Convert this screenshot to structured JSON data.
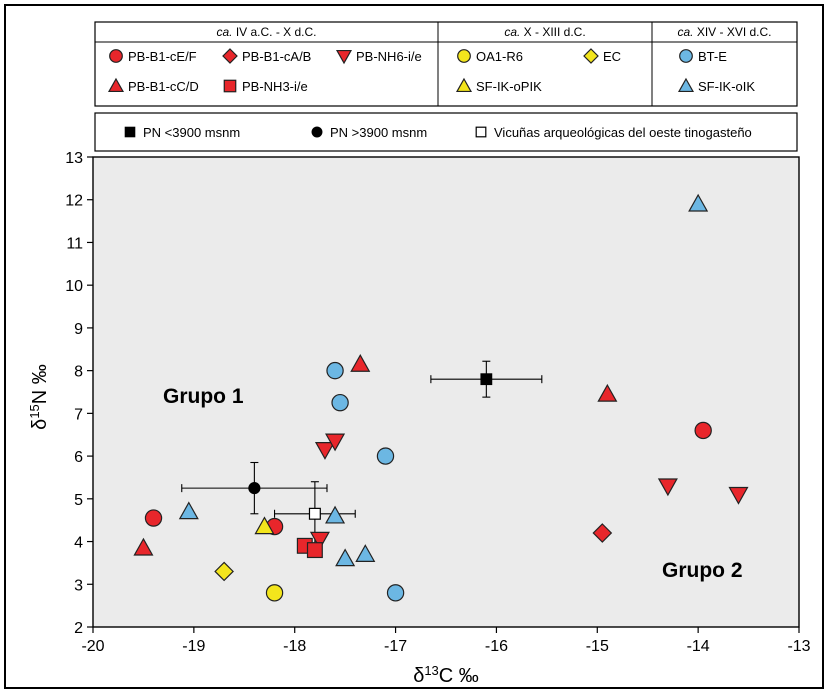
{
  "chart_data": {
    "type": "scatter",
    "xlabel": "δ13C ‰",
    "ylabel": "δ15N ‰",
    "xlim": [
      -20,
      -13
    ],
    "ylim": [
      2,
      13
    ],
    "x_ticks": [
      "-20",
      "-19",
      "-18",
      "-17",
      "-16",
      "-15",
      "-14",
      "-13"
    ],
    "y_ticks": [
      "2",
      "3",
      "4",
      "5",
      "6",
      "7",
      "8",
      "9",
      "10",
      "11",
      "12",
      "13"
    ],
    "grid": false,
    "legend_position": "top",
    "annotations": [
      "Grupo 1",
      "Grupo 2"
    ],
    "periods": [
      {
        "label_italic": "ca.",
        "label": " IV a.C. - X d.C.",
        "color": "#e8262b"
      },
      {
        "label_italic": "ca.",
        "label": " X - XIII d.C.",
        "color": "#f3e51c"
      },
      {
        "label_italic": "ca.",
        "label": " XIV - XVI d.C.",
        "color": "#6cb7e3"
      }
    ],
    "reference_legend": [
      {
        "name": "PN <3900 msnm",
        "marker": "square-filled"
      },
      {
        "name": "PN >3900 msnm",
        "marker": "circle-filled"
      },
      {
        "name": "Vicuñas arqueológicas del oeste tinogasteño",
        "marker": "square-open"
      }
    ],
    "series": [
      {
        "name": "PB-B1-cE/F",
        "marker": "circle",
        "color": "#e8262b",
        "points": [
          [
            -19.4,
            4.55
          ],
          [
            -18.2,
            4.35
          ],
          [
            -13.95,
            6.6
          ]
        ]
      },
      {
        "name": "PB-B1-cA/B",
        "marker": "diamond",
        "color": "#e8262b",
        "points": [
          [
            -14.95,
            4.2
          ]
        ]
      },
      {
        "name": "PB-NH6-i/e",
        "marker": "triangle-down",
        "color": "#e8262b",
        "points": [
          [
            -17.7,
            6.15
          ],
          [
            -17.6,
            6.35
          ],
          [
            -17.75,
            4.05
          ],
          [
            -14.3,
            5.3
          ],
          [
            -13.6,
            5.1
          ]
        ]
      },
      {
        "name": "PB-B1-cC/D",
        "marker": "triangle-up",
        "color": "#e8262b",
        "points": [
          [
            -19.5,
            3.85
          ],
          [
            -17.35,
            8.15
          ],
          [
            -14.9,
            7.45
          ]
        ]
      },
      {
        "name": "PB-NH3-i/e",
        "marker": "square",
        "color": "#e8262b",
        "points": [
          [
            -17.9,
            3.9
          ],
          [
            -17.8,
            3.8
          ]
        ]
      },
      {
        "name": "OA1-R6",
        "marker": "circle",
        "color": "#f3e51c",
        "points": [
          [
            -18.2,
            2.8
          ]
        ]
      },
      {
        "name": "EC",
        "marker": "diamond",
        "color": "#f3e51c",
        "points": [
          [
            -18.7,
            3.3
          ]
        ]
      },
      {
        "name": "SF-IK-oPIK",
        "marker": "triangle-up",
        "color": "#f3e51c",
        "points": [
          [
            -18.3,
            4.35
          ]
        ]
      },
      {
        "name": "BT-E",
        "marker": "circle",
        "color": "#6cb7e3",
        "points": [
          [
            -17.6,
            8.0
          ],
          [
            -17.55,
            7.25
          ],
          [
            -17.1,
            6.0
          ],
          [
            -17.0,
            2.8
          ]
        ]
      },
      {
        "name": "SF-IK-oIK",
        "marker": "triangle-up",
        "color": "#6cb7e3",
        "points": [
          [
            -19.05,
            4.7
          ],
          [
            -17.6,
            4.6
          ],
          [
            -17.5,
            3.6
          ],
          [
            -17.3,
            3.7
          ],
          [
            -14.0,
            11.9
          ]
        ]
      }
    ],
    "reference_points": [
      {
        "name": "PN <3900 msnm",
        "marker": "square-filled",
        "x": -16.1,
        "y": 7.8,
        "x_err": 0.55,
        "y_err": 0.42
      },
      {
        "name": "PN >3900 msnm",
        "marker": "circle-filled",
        "x": -18.4,
        "y": 5.25,
        "x_err": 0.72,
        "y_err": 0.6
      },
      {
        "name": "Vicuñas arqueológicas del oeste tinogasteño",
        "marker": "square-open",
        "x": -17.8,
        "y": 4.65,
        "x_err": 0.4,
        "y_err": 0.75
      }
    ]
  }
}
